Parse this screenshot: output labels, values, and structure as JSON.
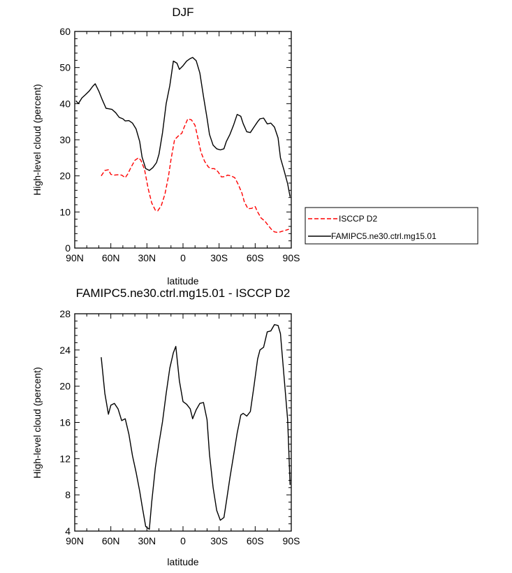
{
  "chart_data": [
    {
      "type": "line",
      "title": "DJF",
      "xlabel": "latitude",
      "ylabel": "High-level cloud (percent)",
      "xlim": [
        90,
        -90
      ],
      "ylim": [
        0,
        60
      ],
      "xticks": [
        90,
        60,
        30,
        0,
        -30,
        -60,
        -90
      ],
      "xtick_labels": [
        "90N",
        "60N",
        "30N",
        "0",
        "30S",
        "60S",
        "90S"
      ],
      "yticks": [
        0,
        10,
        20,
        30,
        40,
        50,
        60
      ],
      "ytick_labels": [
        "0",
        "10",
        "20",
        "30",
        "40",
        "50",
        "60"
      ],
      "grid": false,
      "legend": "right",
      "series": [
        {
          "name": "ISCCP D2",
          "color": "#ff0000",
          "dash": "dashed",
          "x": [
            68,
            65,
            62,
            60,
            57,
            54,
            51,
            48,
            46,
            43,
            40,
            37,
            35,
            32,
            29,
            26,
            23,
            21,
            18,
            15,
            12,
            10,
            7,
            4,
            1,
            -1,
            -4,
            -7,
            -10,
            -12,
            -15,
            -18,
            -21,
            -23,
            -26,
            -29,
            -32,
            -35,
            -37,
            -40,
            -43,
            -46,
            -49,
            -51,
            -54,
            -57,
            -60,
            -62,
            -65,
            -68,
            -71,
            -74,
            -76,
            -79,
            -82,
            -85,
            -88
          ],
          "y": [
            20.0,
            21.5,
            21.7,
            20.4,
            20.2,
            20.3,
            20.2,
            19.5,
            20.5,
            22.5,
            24.3,
            25.0,
            24.3,
            21.8,
            16.5,
            12.5,
            10.5,
            10.3,
            11.8,
            15.0,
            20.0,
            24.5,
            30.0,
            31.0,
            31.8,
            33.5,
            35.8,
            35.5,
            34.0,
            31.0,
            26.5,
            24.0,
            22.5,
            22.0,
            22.0,
            21.2,
            19.7,
            19.8,
            20.2,
            20.0,
            19.5,
            17.6,
            15.2,
            12.8,
            10.9,
            11.0,
            11.5,
            10.0,
            8.3,
            7.5,
            6.2,
            5.0,
            4.5,
            4.3,
            4.6,
            4.9,
            5.2
          ]
        },
        {
          "name": "FAMIPC5.ne30.ctrl.mg15.01",
          "color": "#000000",
          "dash": "solid",
          "x": [
            89,
            87,
            84,
            81,
            78,
            75,
            73,
            70,
            67,
            64,
            62,
            59,
            56,
            53,
            50,
            48,
            45,
            42,
            39,
            36,
            34,
            31,
            28,
            25,
            22,
            20,
            17,
            14,
            11,
            8,
            5,
            3,
            0,
            -3,
            -6,
            -8,
            -11,
            -14,
            -17,
            -20,
            -22,
            -25,
            -28,
            -31,
            -34,
            -36,
            -39,
            -42,
            -45,
            -48,
            -50,
            -53,
            -56,
            -59,
            -62,
            -64,
            -67,
            -70,
            -73,
            -76,
            -79,
            -81,
            -84,
            -87,
            -89
          ],
          "y": [
            40.8,
            40.0,
            41.6,
            42.5,
            43.5,
            44.8,
            45.5,
            43.5,
            41.0,
            38.7,
            38.6,
            38.4,
            37.5,
            36.2,
            35.8,
            35.2,
            35.3,
            34.6,
            33.0,
            29.5,
            25.2,
            22.0,
            21.5,
            22.3,
            23.7,
            26.0,
            32.0,
            40.0,
            45.0,
            51.8,
            51.2,
            49.5,
            50.5,
            51.8,
            52.5,
            52.8,
            51.9,
            48.5,
            42.0,
            36.0,
            31.5,
            28.5,
            27.5,
            27.2,
            27.5,
            29.5,
            31.5,
            34.0,
            37.0,
            36.5,
            34.5,
            32.2,
            32.0,
            33.5,
            35.0,
            35.8,
            36.0,
            34.4,
            34.6,
            33.5,
            30.5,
            25.0,
            21.5,
            17.8,
            14.2
          ]
        }
      ]
    },
    {
      "type": "line",
      "title": "FAMIPC5.ne30.ctrl.mg15.01 - ISCCP D2",
      "xlabel": "latitude",
      "ylabel": "High-level cloud (percent)",
      "xlim": [
        90,
        -90
      ],
      "ylim": [
        4,
        28
      ],
      "xticks": [
        90,
        60,
        30,
        0,
        -30,
        -60,
        -90
      ],
      "xtick_labels": [
        "90N",
        "60N",
        "30N",
        "0",
        "30S",
        "60S",
        "90S"
      ],
      "yticks": [
        4,
        8,
        12,
        16,
        20,
        24,
        28
      ],
      "ytick_labels": [
        "4",
        "8",
        "12",
        "16",
        "20",
        "24",
        "28"
      ],
      "grid": false,
      "series": [
        {
          "color": "#000000",
          "dash": "solid",
          "x": [
            68,
            65,
            62,
            60,
            57,
            54,
            51,
            48,
            45,
            42,
            39,
            36,
            34,
            31,
            28,
            26,
            23,
            20,
            17,
            14,
            11,
            8,
            6,
            3,
            0,
            -3,
            -6,
            -8,
            -11,
            -14,
            -17,
            -20,
            -22,
            -25,
            -28,
            -31,
            -34,
            -36,
            -39,
            -42,
            -45,
            -48,
            -50,
            -53,
            -56,
            -59,
            -62,
            -64,
            -67,
            -70,
            -73,
            -76,
            -79,
            -81,
            -84,
            -87,
            -89
          ],
          "y": [
            23.2,
            19.2,
            16.9,
            17.9,
            18.1,
            17.5,
            16.2,
            16.4,
            14.7,
            12.3,
            10.5,
            8.4,
            6.8,
            4.5,
            4.2,
            7.2,
            11.0,
            13.7,
            16.1,
            19.2,
            22.0,
            23.7,
            24.4,
            20.6,
            18.3,
            18.0,
            17.5,
            16.4,
            17.4,
            18.1,
            18.2,
            16.3,
            12.5,
            8.8,
            6.3,
            5.2,
            5.5,
            7.2,
            9.9,
            12.3,
            14.8,
            16.8,
            17.0,
            16.7,
            17.2,
            20.0,
            23.0,
            24.0,
            24.3,
            26.0,
            26.1,
            26.8,
            26.7,
            25.8,
            21.0,
            16.3,
            9.1
          ]
        }
      ]
    }
  ]
}
